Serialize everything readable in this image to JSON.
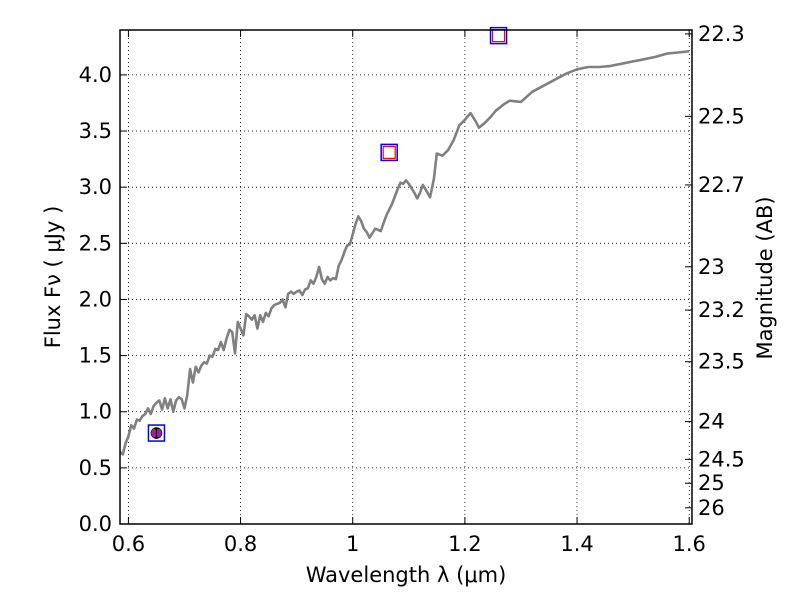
{
  "chart_data": {
    "type": "line",
    "xlabel": "Wavelength  λ (μm)",
    "ylabel": "Flux  Fν ( μJy )",
    "y2label": "Magnitude (AB)",
    "xlim": [
      0.585,
      1.605
    ],
    "ylim": [
      0.0,
      4.4
    ],
    "grid": true,
    "x_ticks": [
      {
        "value": 0.6,
        "label": "0.6"
      },
      {
        "value": 0.8,
        "label": "0.8"
      },
      {
        "value": 1.0,
        "label": "1"
      },
      {
        "value": 1.2,
        "label": "1.2"
      },
      {
        "value": 1.4,
        "label": "1.4"
      },
      {
        "value": 1.6,
        "label": "1.6"
      }
    ],
    "y_ticks": [
      {
        "value": 0.0,
        "label": "0.0"
      },
      {
        "value": 0.5,
        "label": "0.5"
      },
      {
        "value": 1.0,
        "label": "1.0"
      },
      {
        "value": 1.5,
        "label": "1.5"
      },
      {
        "value": 2.0,
        "label": "2.0"
      },
      {
        "value": 2.5,
        "label": "2.5"
      },
      {
        "value": 3.0,
        "label": "3.0"
      },
      {
        "value": 3.5,
        "label": "3.5"
      },
      {
        "value": 4.0,
        "label": "4.0"
      }
    ],
    "y2_ticks": [
      {
        "value": 22.3,
        "label": "22.3"
      },
      {
        "value": 22.5,
        "label": "22.5"
      },
      {
        "value": 22.7,
        "label": "22.7"
      },
      {
        "value": 23.0,
        "label": "23"
      },
      {
        "value": 23.2,
        "label": "23.2"
      },
      {
        "value": 23.5,
        "label": "23.5"
      },
      {
        "value": 24.0,
        "label": "24"
      },
      {
        "value": 24.5,
        "label": "24.5"
      },
      {
        "value": 25.0,
        "label": "25"
      },
      {
        "value": 26.0,
        "label": "26"
      }
    ],
    "series": [
      {
        "style": "line",
        "color": "#808080",
        "points": [
          [
            0.585,
            0.64
          ],
          [
            0.59,
            0.62
          ],
          [
            0.595,
            0.72
          ],
          [
            0.6,
            0.78
          ],
          [
            0.605,
            0.88
          ],
          [
            0.61,
            0.85
          ],
          [
            0.615,
            0.93
          ],
          [
            0.62,
            0.92
          ],
          [
            0.625,
            0.96
          ],
          [
            0.63,
            0.98
          ],
          [
            0.635,
            1.03
          ],
          [
            0.64,
            0.98
          ],
          [
            0.645,
            1.05
          ],
          [
            0.65,
            1.08
          ],
          [
            0.655,
            1.1
          ],
          [
            0.66,
            1.02
          ],
          [
            0.665,
            1.12
          ],
          [
            0.67,
            1.03
          ],
          [
            0.675,
            1.11
          ],
          [
            0.68,
            1.0
          ],
          [
            0.685,
            1.1
          ],
          [
            0.69,
            1.13
          ],
          [
            0.695,
            1.11
          ],
          [
            0.7,
            1.03
          ],
          [
            0.705,
            1.15
          ],
          [
            0.71,
            1.38
          ],
          [
            0.715,
            1.26
          ],
          [
            0.72,
            1.4
          ],
          [
            0.725,
            1.35
          ],
          [
            0.73,
            1.41
          ],
          [
            0.735,
            1.44
          ],
          [
            0.74,
            1.43
          ],
          [
            0.745,
            1.5
          ],
          [
            0.75,
            1.49
          ],
          [
            0.755,
            1.56
          ],
          [
            0.76,
            1.55
          ],
          [
            0.765,
            1.62
          ],
          [
            0.77,
            1.55
          ],
          [
            0.775,
            1.65
          ],
          [
            0.78,
            1.73
          ],
          [
            0.785,
            1.71
          ],
          [
            0.79,
            1.52
          ],
          [
            0.795,
            1.8
          ],
          [
            0.8,
            1.74
          ],
          [
            0.805,
            1.68
          ],
          [
            0.81,
            1.87
          ],
          [
            0.815,
            1.85
          ],
          [
            0.82,
            1.82
          ],
          [
            0.825,
            1.86
          ],
          [
            0.83,
            1.74
          ],
          [
            0.835,
            1.86
          ],
          [
            0.84,
            1.8
          ],
          [
            0.845,
            1.88
          ],
          [
            0.85,
            1.85
          ],
          [
            0.855,
            1.92
          ],
          [
            0.86,
            1.95
          ],
          [
            0.87,
            1.97
          ],
          [
            0.875,
            2.0
          ],
          [
            0.88,
            1.93
          ],
          [
            0.885,
            2.05
          ],
          [
            0.89,
            2.07
          ],
          [
            0.895,
            2.05
          ],
          [
            0.9,
            2.07
          ],
          [
            0.905,
            2.08
          ],
          [
            0.91,
            2.04
          ],
          [
            0.915,
            2.09
          ],
          [
            0.92,
            2.1
          ],
          [
            0.925,
            2.17
          ],
          [
            0.93,
            2.14
          ],
          [
            0.935,
            2.2
          ],
          [
            0.94,
            2.29
          ],
          [
            0.945,
            2.18
          ],
          [
            0.95,
            2.14
          ],
          [
            0.955,
            2.2
          ],
          [
            0.96,
            2.17
          ],
          [
            0.965,
            2.19
          ],
          [
            0.97,
            2.18
          ],
          [
            0.975,
            2.3
          ],
          [
            0.98,
            2.35
          ],
          [
            0.985,
            2.42
          ],
          [
            0.99,
            2.48
          ],
          [
            0.995,
            2.49
          ],
          [
            1.0,
            2.58
          ],
          [
            1.005,
            2.67
          ],
          [
            1.01,
            2.74
          ],
          [
            1.015,
            2.7
          ],
          [
            1.02,
            2.63
          ],
          [
            1.025,
            2.6
          ],
          [
            1.03,
            2.55
          ],
          [
            1.035,
            2.59
          ],
          [
            1.04,
            2.63
          ],
          [
            1.05,
            2.61
          ],
          [
            1.055,
            2.68
          ],
          [
            1.06,
            2.75
          ],
          [
            1.07,
            2.85
          ],
          [
            1.08,
            2.98
          ],
          [
            1.085,
            3.04
          ],
          [
            1.09,
            3.03
          ],
          [
            1.095,
            3.06
          ],
          [
            1.1,
            3.03
          ],
          [
            1.11,
            2.95
          ],
          [
            1.115,
            2.9
          ],
          [
            1.12,
            2.95
          ],
          [
            1.125,
            3.02
          ],
          [
            1.13,
            2.98
          ],
          [
            1.138,
            2.91
          ],
          [
            1.145,
            3.08
          ],
          [
            1.15,
            3.3
          ],
          [
            1.16,
            3.28
          ],
          [
            1.17,
            3.33
          ],
          [
            1.18,
            3.42
          ],
          [
            1.19,
            3.55
          ],
          [
            1.2,
            3.6
          ],
          [
            1.21,
            3.66
          ],
          [
            1.22,
            3.58
          ],
          [
            1.225,
            3.53
          ],
          [
            1.235,
            3.57
          ],
          [
            1.245,
            3.62
          ],
          [
            1.255,
            3.68
          ],
          [
            1.27,
            3.74
          ],
          [
            1.28,
            3.77
          ],
          [
            1.3,
            3.76
          ],
          [
            1.32,
            3.85
          ],
          [
            1.35,
            3.93
          ],
          [
            1.38,
            4.01
          ],
          [
            1.4,
            4.05
          ],
          [
            1.42,
            4.07
          ],
          [
            1.44,
            4.07
          ],
          [
            1.46,
            4.08
          ],
          [
            1.48,
            4.1
          ],
          [
            1.5,
            4.12
          ],
          [
            1.52,
            4.14
          ],
          [
            1.54,
            4.16
          ],
          [
            1.56,
            4.19
          ],
          [
            1.58,
            4.2
          ],
          [
            1.6,
            4.21
          ]
        ]
      }
    ],
    "observed_points": [
      {
        "x": 0.65,
        "y": 0.81,
        "marker": "filled-circle",
        "fill": "#a020a0",
        "errorbar": [
          0.77,
          0.85
        ],
        "box_color": "#0000ff"
      }
    ],
    "model_points": [
      {
        "x": 0.65,
        "y": 0.81,
        "outer_color": "#0000ff"
      },
      {
        "x": 1.065,
        "y": 3.31,
        "outer_color": "#0000ff",
        "inner_color": "#ff0000"
      },
      {
        "x": 1.26,
        "y": 4.35,
        "outer_color": "#0000ff",
        "inner_color": "#ff0000"
      }
    ]
  }
}
